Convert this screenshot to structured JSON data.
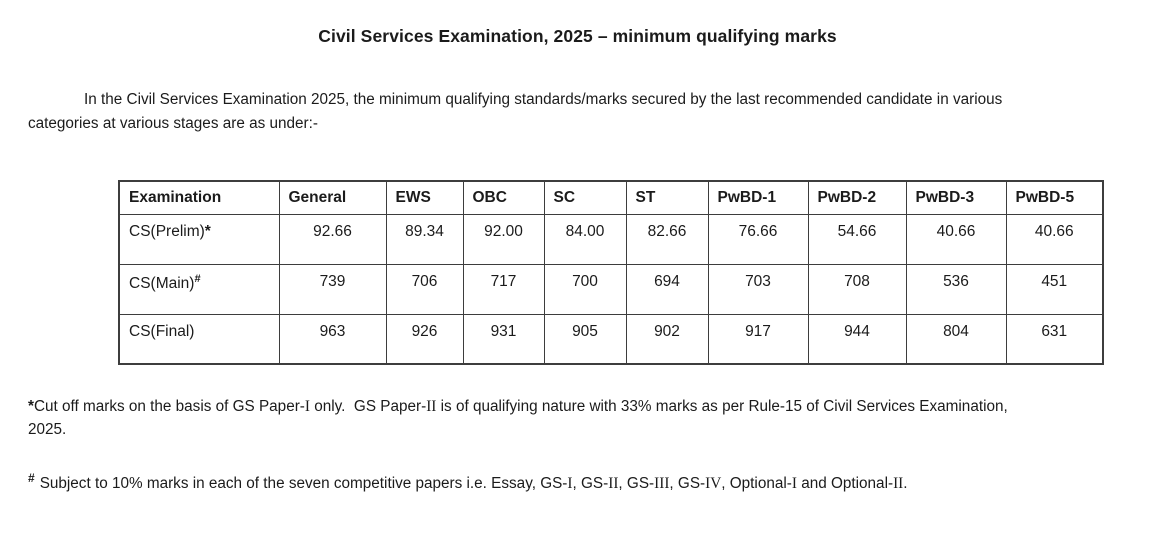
{
  "title": "Civil Services Examination, 2025 – minimum qualifying marks",
  "intro": "In the Civil Services Examination 2025, the minimum qualifying standards/marks secured by the last recommended candidate in various\ncategories at various stages are as under:-",
  "table": {
    "columns": [
      "Examination",
      "General",
      "EWS",
      "OBC",
      "SC",
      "ST",
      "PwBD-1",
      "PwBD-2",
      "PwBD-3",
      "PwBD-5"
    ],
    "rows": [
      {
        "label": "CS(Prelim)",
        "suffix": "*",
        "suffix_superscript": false,
        "values": [
          "92.66",
          "89.34",
          "92.00",
          "84.00",
          "82.66",
          "76.66",
          "54.66",
          "40.66",
          "40.66"
        ]
      },
      {
        "label": "CS(Main)",
        "suffix": "#",
        "suffix_superscript": true,
        "values": [
          "739",
          "706",
          "717",
          "700",
          "694",
          "703",
          "708",
          "536",
          "451"
        ]
      },
      {
        "label": "CS(Final)",
        "suffix": "",
        "suffix_superscript": false,
        "values": [
          "963",
          "926",
          "931",
          "905",
          "902",
          "917",
          "944",
          "804",
          "631"
        ]
      }
    ]
  },
  "footnotes": [
    {
      "marker": "*",
      "superscript": false,
      "text": "Cut off marks on the basis of GS Paper-I only.  GS Paper-II is of qualifying nature with 33% marks as per Rule-15 of Civil Services Examination,\n2025."
    },
    {
      "marker": "#",
      "superscript": true,
      "text": "Subject to 10% marks in each of the seven competitive papers i.e. Essay, GS-I, GS-II, GS-III, GS-IV, Optional-I and Optional-II."
    }
  ]
}
